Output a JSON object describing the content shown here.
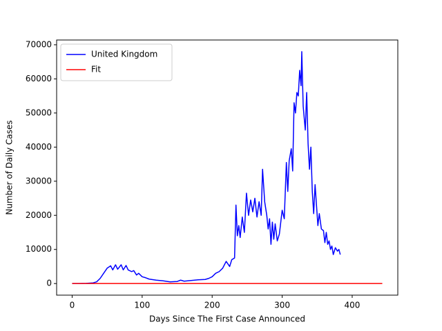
{
  "chart_data": {
    "type": "line",
    "xlabel": "Days Since The First Case Announced",
    "ylabel": "Number of Daily Cases",
    "xlim": [
      -22.15,
      465.15
    ],
    "xticks": [
      0,
      100,
      200,
      300,
      400
    ],
    "ylim": [
      -3400,
      71400
    ],
    "yticks": [
      0,
      10000,
      20000,
      30000,
      40000,
      50000,
      60000,
      70000
    ],
    "legend": "upper left",
    "series": [
      {
        "name": "United Kingdom",
        "color": "#0000ff",
        "x": [
          0,
          10,
          20,
          30,
          35,
          40,
          45,
          50,
          55,
          58,
          62,
          65,
          70,
          73,
          77,
          80,
          85,
          88,
          92,
          95,
          100,
          105,
          110,
          120,
          130,
          140,
          150,
          155,
          160,
          170,
          180,
          190,
          195,
          200,
          205,
          210,
          215,
          220,
          225,
          228,
          232,
          234,
          236,
          238,
          240,
          243,
          246,
          249,
          252,
          255,
          258,
          261,
          264,
          267,
          270,
          272,
          275,
          278,
          280,
          282,
          284,
          286,
          288,
          290,
          293,
          296,
          300,
          303,
          306,
          308,
          310,
          313,
          315,
          317,
          319,
          321,
          323,
          325,
          327,
          328,
          330,
          333,
          335,
          337,
          339,
          341,
          343,
          345,
          347,
          349,
          351,
          353,
          356,
          359,
          361,
          363,
          365,
          367,
          369,
          371,
          373,
          376,
          379,
          381,
          383
        ],
        "values": [
          0,
          10,
          50,
          200,
          500,
          1500,
          3000,
          4500,
          5200,
          4000,
          5500,
          4200,
          5500,
          4000,
          5300,
          4000,
          3500,
          3800,
          2500,
          3000,
          2000,
          1700,
          1300,
          1000,
          800,
          500,
          600,
          1000,
          700,
          900,
          1100,
          1200,
          1500,
          2000,
          3000,
          3500,
          4500,
          6500,
          5000,
          7000,
          7500,
          23000,
          14000,
          17000,
          13500,
          19500,
          15000,
          26500,
          20000,
          24500,
          21000,
          25000,
          19500,
          24000,
          20000,
          33500,
          24000,
          20000,
          16000,
          19000,
          11500,
          18000,
          13000,
          17500,
          12500,
          14500,
          21500,
          19000,
          35500,
          27000,
          36000,
          39500,
          33000,
          53000,
          50000,
          56000,
          55000,
          62500,
          58000,
          68000,
          52000,
          45000,
          56000,
          41000,
          33500,
          40000,
          27000,
          20500,
          29000,
          23000,
          17000,
          20500,
          16000,
          15500,
          12000,
          15000,
          11500,
          12500,
          10000,
          11000,
          8500,
          10500,
          9500,
          10000,
          8500
        ]
      },
      {
        "name": "Fit",
        "color": "#ff0000",
        "x": [
          0,
          443
        ],
        "values": [
          0,
          0
        ]
      }
    ]
  }
}
